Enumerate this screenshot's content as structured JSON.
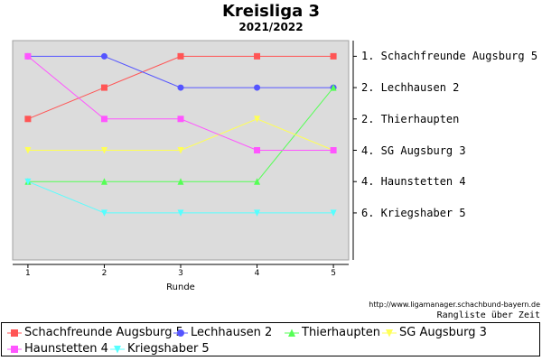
{
  "chart_data": {
    "type": "line",
    "title": "Kreisliga 3",
    "subtitle": "2021/2022",
    "xlabel": "Runde",
    "ylabel": "",
    "x": [
      1,
      2,
      3,
      4,
      5
    ],
    "xlim": [
      0.8,
      5.2
    ],
    "ylim": [
      0.5,
      7.5
    ],
    "y_inverted": true,
    "grid": false,
    "legend_position": "bottom",
    "series": [
      {
        "name": "Schachfreunde Augsburg 5",
        "color": "#ff5555",
        "marker": "square",
        "values": [
          3,
          2,
          1,
          1,
          1
        ]
      },
      {
        "name": "Lechhausen 2",
        "color": "#5555ff",
        "marker": "circle",
        "values": [
          1,
          1,
          2,
          2,
          2
        ]
      },
      {
        "name": "Thierhaupten",
        "color": "#55ff55",
        "marker": "triangle-up",
        "values": [
          5,
          5,
          5,
          5,
          2
        ]
      },
      {
        "name": "SG Augsburg 3",
        "color": "#ffff55",
        "marker": "triangle-down",
        "values": [
          4,
          4,
          4,
          3,
          4
        ]
      },
      {
        "name": "Haunstetten 4",
        "color": "#ff55ff",
        "marker": "square",
        "values": [
          1,
          3,
          3,
          4,
          4
        ]
      },
      {
        "name": "Kriegshaber 5",
        "color": "#55ffff",
        "marker": "triangle-down",
        "values": [
          5,
          6,
          6,
          6,
          6
        ]
      }
    ],
    "final_ranking": [
      {
        "label": "1. Schachfreunde Augsburg 5",
        "value": 1
      },
      {
        "label": "2. Lechhausen 2",
        "value": 2
      },
      {
        "label": "2. Thierhaupten",
        "value": 3
      },
      {
        "label": "4. SG Augsburg 3",
        "value": 4
      },
      {
        "label": "4. Haunstetten 4",
        "value": 5
      },
      {
        "label": "6. Kriegshaber 5",
        "value": 6
      }
    ],
    "plot_background": "#dcdcdc",
    "credit_url": "http://www.ligamanager.schachbund-bayern.de",
    "credit_note": "Rangliste über Zeit"
  }
}
